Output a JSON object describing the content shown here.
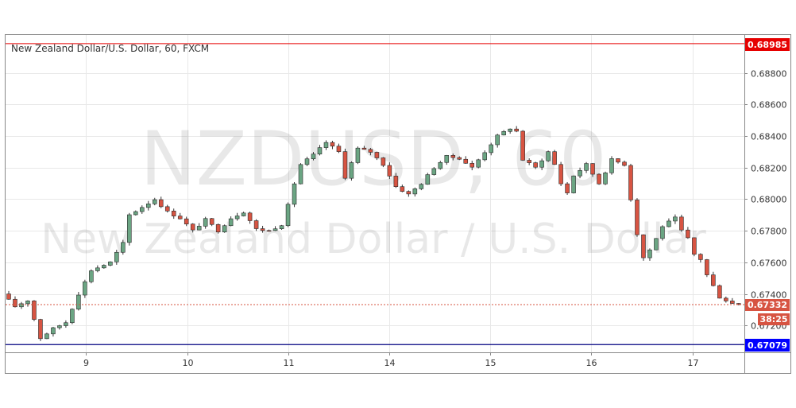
{
  "header": {
    "title": "New Zealand Dollar/U.S. Dollar, 60, FXCM"
  },
  "watermark": {
    "symbol": "NZDUSD, 60",
    "description": "New Zealand Dollar / U.S. Dollar"
  },
  "colors": {
    "up_candle": "#6ba583",
    "down_candle": "#d75442",
    "wick": "#333333",
    "grid": "#e8e8e8",
    "resistance": "#e60000",
    "support": "#000080",
    "support_tag": "#0000ff",
    "last_price": "#d75442"
  },
  "price_tags": {
    "resistance": {
      "label": "0.68985",
      "value": 0.68985
    },
    "last": {
      "label": "0.67332",
      "value": 0.67332
    },
    "countdown": {
      "label": "38:25"
    },
    "support": {
      "label": "0.67079",
      "value": 0.67079
    }
  },
  "chart_data": {
    "type": "candlestick",
    "title": "New Zealand Dollar/U.S. Dollar, 60, FXCM",
    "ylim": [
      0.6703,
      0.6904
    ],
    "y_ticks": [
      "0.67200",
      "0.67400",
      "0.67600",
      "0.67800",
      "0.68000",
      "0.68200",
      "0.68400",
      "0.68600",
      "0.68800"
    ],
    "x_ticks": [
      {
        "label": "9",
        "hour": 12.6
      },
      {
        "label": "10",
        "hour": 28.6
      },
      {
        "label": "11",
        "hour": 44.5
      },
      {
        "label": "14",
        "hour": 60.4
      },
      {
        "label": "15",
        "hour": 76.4
      },
      {
        "label": "16",
        "hour": 92.3
      },
      {
        "label": "17",
        "hour": 108.3
      }
    ],
    "x_range": [
      0,
      116.4
    ],
    "horizontal_lines": [
      {
        "name": "resistance",
        "value": 0.68985
      },
      {
        "name": "support",
        "value": 0.67079
      },
      {
        "name": "last",
        "value": 0.67332
      }
    ],
    "anchors": [
      [
        0,
        0.674
      ],
      [
        2,
        0.6732
      ],
      [
        4,
        0.6736
      ],
      [
        6,
        0.6712
      ],
      [
        8,
        0.6718
      ],
      [
        10,
        0.6722
      ],
      [
        12,
        0.674
      ],
      [
        14,
        0.6755
      ],
      [
        17,
        0.676
      ],
      [
        19,
        0.6772
      ],
      [
        20,
        0.679
      ],
      [
        22,
        0.6795
      ],
      [
        24,
        0.68
      ],
      [
        26,
        0.6792
      ],
      [
        28,
        0.6788
      ],
      [
        30,
        0.678
      ],
      [
        32,
        0.6787
      ],
      [
        34,
        0.678
      ],
      [
        36,
        0.6788
      ],
      [
        38,
        0.6792
      ],
      [
        40,
        0.6781
      ],
      [
        42,
        0.678
      ],
      [
        44,
        0.6784
      ],
      [
        45,
        0.6796
      ],
      [
        46,
        0.681
      ],
      [
        47,
        0.6822
      ],
      [
        49,
        0.6828
      ],
      [
        51,
        0.6836
      ],
      [
        53,
        0.683
      ],
      [
        54,
        0.6814
      ],
      [
        56,
        0.6832
      ],
      [
        58,
        0.683
      ],
      [
        60,
        0.6822
      ],
      [
        62,
        0.6808
      ],
      [
        64,
        0.6803
      ],
      [
        66,
        0.681
      ],
      [
        68,
        0.682
      ],
      [
        70,
        0.6827
      ],
      [
        72,
        0.6826
      ],
      [
        74,
        0.682
      ],
      [
        76,
        0.683
      ],
      [
        78,
        0.684
      ],
      [
        80,
        0.6845
      ],
      [
        81,
        0.6843
      ],
      [
        82,
        0.6825
      ],
      [
        84,
        0.682
      ],
      [
        86,
        0.683
      ],
      [
        87,
        0.6822
      ],
      [
        88,
        0.681
      ],
      [
        89,
        0.6804
      ],
      [
        90,
        0.6815
      ],
      [
        92,
        0.6822
      ],
      [
        94,
        0.681
      ],
      [
        96,
        0.6825
      ],
      [
        98,
        0.6822
      ],
      [
        99,
        0.68
      ],
      [
        100,
        0.6778
      ],
      [
        101,
        0.6763
      ],
      [
        102,
        0.6768
      ],
      [
        103,
        0.6775
      ],
      [
        104,
        0.6783
      ],
      [
        106,
        0.6788
      ],
      [
        107,
        0.678
      ],
      [
        108,
        0.6775
      ],
      [
        109,
        0.6765
      ],
      [
        110,
        0.6762
      ],
      [
        111,
        0.6752
      ],
      [
        112,
        0.6745
      ],
      [
        113,
        0.6738
      ],
      [
        114,
        0.6736
      ],
      [
        115,
        0.6734
      ]
    ],
    "candle_count": 116
  }
}
